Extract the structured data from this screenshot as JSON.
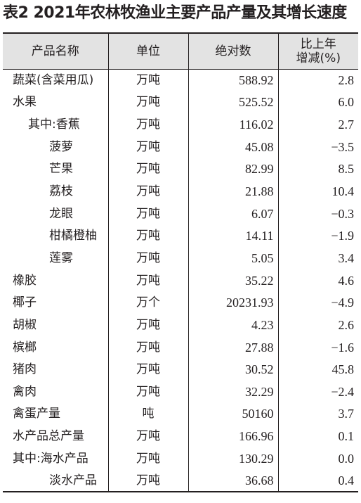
{
  "title": "表2 2021年农林牧渔业主要产品产量及其增长速度",
  "table": {
    "headers": {
      "name": "产品名称",
      "unit": "单位",
      "output": "绝对数",
      "growth_line1": "比上年",
      "growth_line2": "增减(%)"
    },
    "rows": [
      {
        "name": "蔬菜(含菜用瓜)",
        "unit": "万吨",
        "output": "588.92",
        "growth": "2.8"
      },
      {
        "name": "水果",
        "unit": "万吨",
        "output": "525.52",
        "growth": "6.0"
      },
      {
        "name": "其中:香蕉",
        "unit": "万吨",
        "output": "116.02",
        "growth": "2.7"
      },
      {
        "name": "菠萝",
        "unit": "万吨",
        "output": "45.08",
        "growth": "−3.5"
      },
      {
        "name": "芒果",
        "unit": "万吨",
        "output": "82.99",
        "growth": "8.5"
      },
      {
        "name": "荔枝",
        "unit": "万吨",
        "output": "21.88",
        "growth": "10.4"
      },
      {
        "name": "龙眼",
        "unit": "万吨",
        "output": "6.07",
        "growth": "−0.3"
      },
      {
        "name": "柑橘橙柚",
        "unit": "万吨",
        "output": "14.11",
        "growth": "−1.9"
      },
      {
        "name": "莲雾",
        "unit": "万吨",
        "output": "5.05",
        "growth": "3.4"
      },
      {
        "name": "橡胶",
        "unit": "万吨",
        "output": "35.22",
        "growth": "4.6"
      },
      {
        "name": "椰子",
        "unit": "万个",
        "output": "20231.93",
        "growth": "−4.9"
      },
      {
        "name": "胡椒",
        "unit": "万吨",
        "output": "4.23",
        "growth": "2.6"
      },
      {
        "name": "槟榔",
        "unit": "万吨",
        "output": "27.88",
        "growth": "−1.6"
      },
      {
        "name": "猪肉",
        "unit": "万吨",
        "output": "30.52",
        "growth": "45.8"
      },
      {
        "name": "禽肉",
        "unit": "万吨",
        "output": "32.29",
        "growth": "−2.4"
      },
      {
        "name": "禽蛋产量",
        "unit": "吨",
        "output": "50160",
        "growth": "3.7"
      },
      {
        "name": "水产品总产量",
        "unit": "万吨",
        "output": "166.96",
        "growth": "0.1"
      },
      {
        "name": "其中:海水产品",
        "unit": "万吨",
        "output": "130.29",
        "growth": "0.0"
      },
      {
        "name": "淡水产品",
        "unit": "万吨",
        "output": "36.68",
        "growth": "0.4"
      }
    ]
  }
}
